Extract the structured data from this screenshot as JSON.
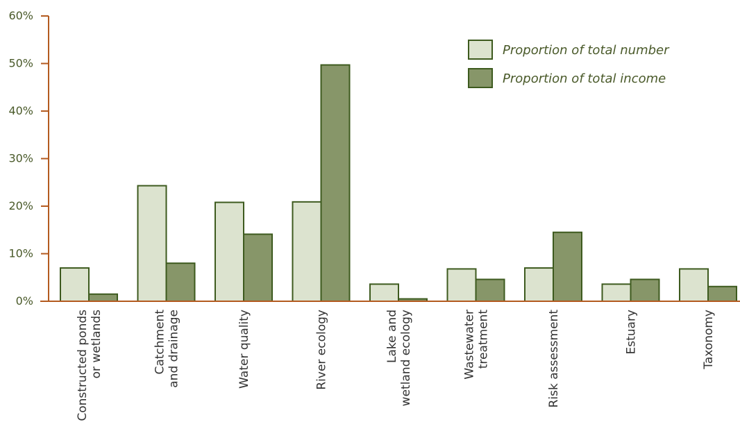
{
  "chart_data": {
    "type": "bar",
    "categories": [
      [
        "Constructed ponds",
        "or wetlands"
      ],
      [
        "Catchment",
        "and drainage"
      ],
      [
        "Water quality"
      ],
      [
        "River ecology"
      ],
      [
        "Lake and",
        "wetland ecology"
      ],
      [
        "Wastewater",
        "treatment"
      ],
      [
        "Risk assessment"
      ],
      [
        "Estuary"
      ],
      [
        "Taxonomy"
      ]
    ],
    "series": [
      {
        "name": "Proportion of total number",
        "color": "#dce3cf",
        "values": [
          7,
          24.3,
          20.8,
          20.9,
          3.6,
          6.8,
          7,
          3.6,
          6.8
        ]
      },
      {
        "name": "Proportion of total income",
        "color": "#879669",
        "values": [
          1.5,
          8,
          14.1,
          49.7,
          0.5,
          4.6,
          14.5,
          4.6,
          3.1
        ]
      }
    ],
    "yticks": [
      "0%",
      "10%",
      "20%",
      "30%",
      "40%",
      "50%",
      "60%"
    ],
    "ylim": [
      0,
      60
    ],
    "legend_position": "top-right",
    "grid": false,
    "colors": {
      "axis": "#b35a1f",
      "bar_stroke": "#3d5a1e",
      "text": "#4a5a2a"
    }
  }
}
